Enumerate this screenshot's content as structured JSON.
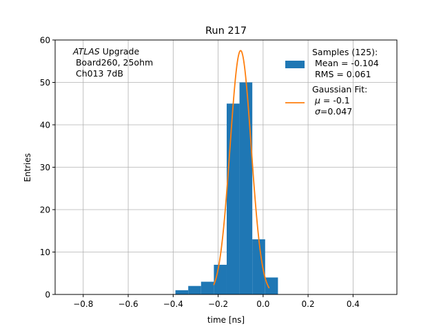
{
  "chart_data": {
    "type": "bar",
    "title": "Run 217",
    "xlabel": "time [ns]",
    "ylabel": "Entries",
    "xlim": [
      -0.925,
      0.595
    ],
    "ylim": [
      0,
      60
    ],
    "grid": true,
    "legend_placement": "top-right",
    "xticks": [
      "−0.8",
      "−0.6",
      "−0.4",
      "−0.2",
      "0.0",
      "0.2",
      "0.4"
    ],
    "xtick_values": [
      -0.8,
      -0.6,
      -0.4,
      -0.2,
      0.0,
      0.2,
      0.4
    ],
    "yticks": [
      "0",
      "10",
      "20",
      "30",
      "40",
      "50",
      "60"
    ],
    "ytick_values": [
      0,
      10,
      20,
      30,
      40,
      50,
      60
    ],
    "annotation": {
      "line1_italic": "ATLAS",
      "line1_rest": " Upgrade",
      "line2": " Board260, 25ohm",
      "line3": " Ch013 7dB"
    },
    "histogram": {
      "name": "Samples (125):",
      "color": "#1f77b4",
      "bins": [
        {
          "x0": -0.39,
          "x1": -0.333,
          "count": 1
        },
        {
          "x0": -0.333,
          "x1": -0.276,
          "count": 2
        },
        {
          "x0": -0.276,
          "x1": -0.219,
          "count": 3
        },
        {
          "x0": -0.219,
          "x1": -0.162,
          "count": 7
        },
        {
          "x0": -0.162,
          "x1": -0.105,
          "count": 45
        },
        {
          "x0": -0.105,
          "x1": -0.048,
          "count": 50
        },
        {
          "x0": -0.048,
          "x1": 0.009,
          "count": 13
        },
        {
          "x0": 0.009,
          "x1": 0.066,
          "count": 4
        }
      ],
      "mean_label": " Mean = -0.104",
      "rms_label": " RMS = 0.061"
    },
    "fit": {
      "name": "Gaussian Fit:",
      "color": "#ff7f0e",
      "mu": -0.1,
      "sigma": 0.047,
      "amplitude": 57.5,
      "x_range": [
        -0.22,
        0.027
      ],
      "mu_label_symbol": "μ",
      "mu_label_rest": " = -0.1",
      "sigma_label_symbol": "σ",
      "sigma_label_rest": "=0.047"
    }
  }
}
